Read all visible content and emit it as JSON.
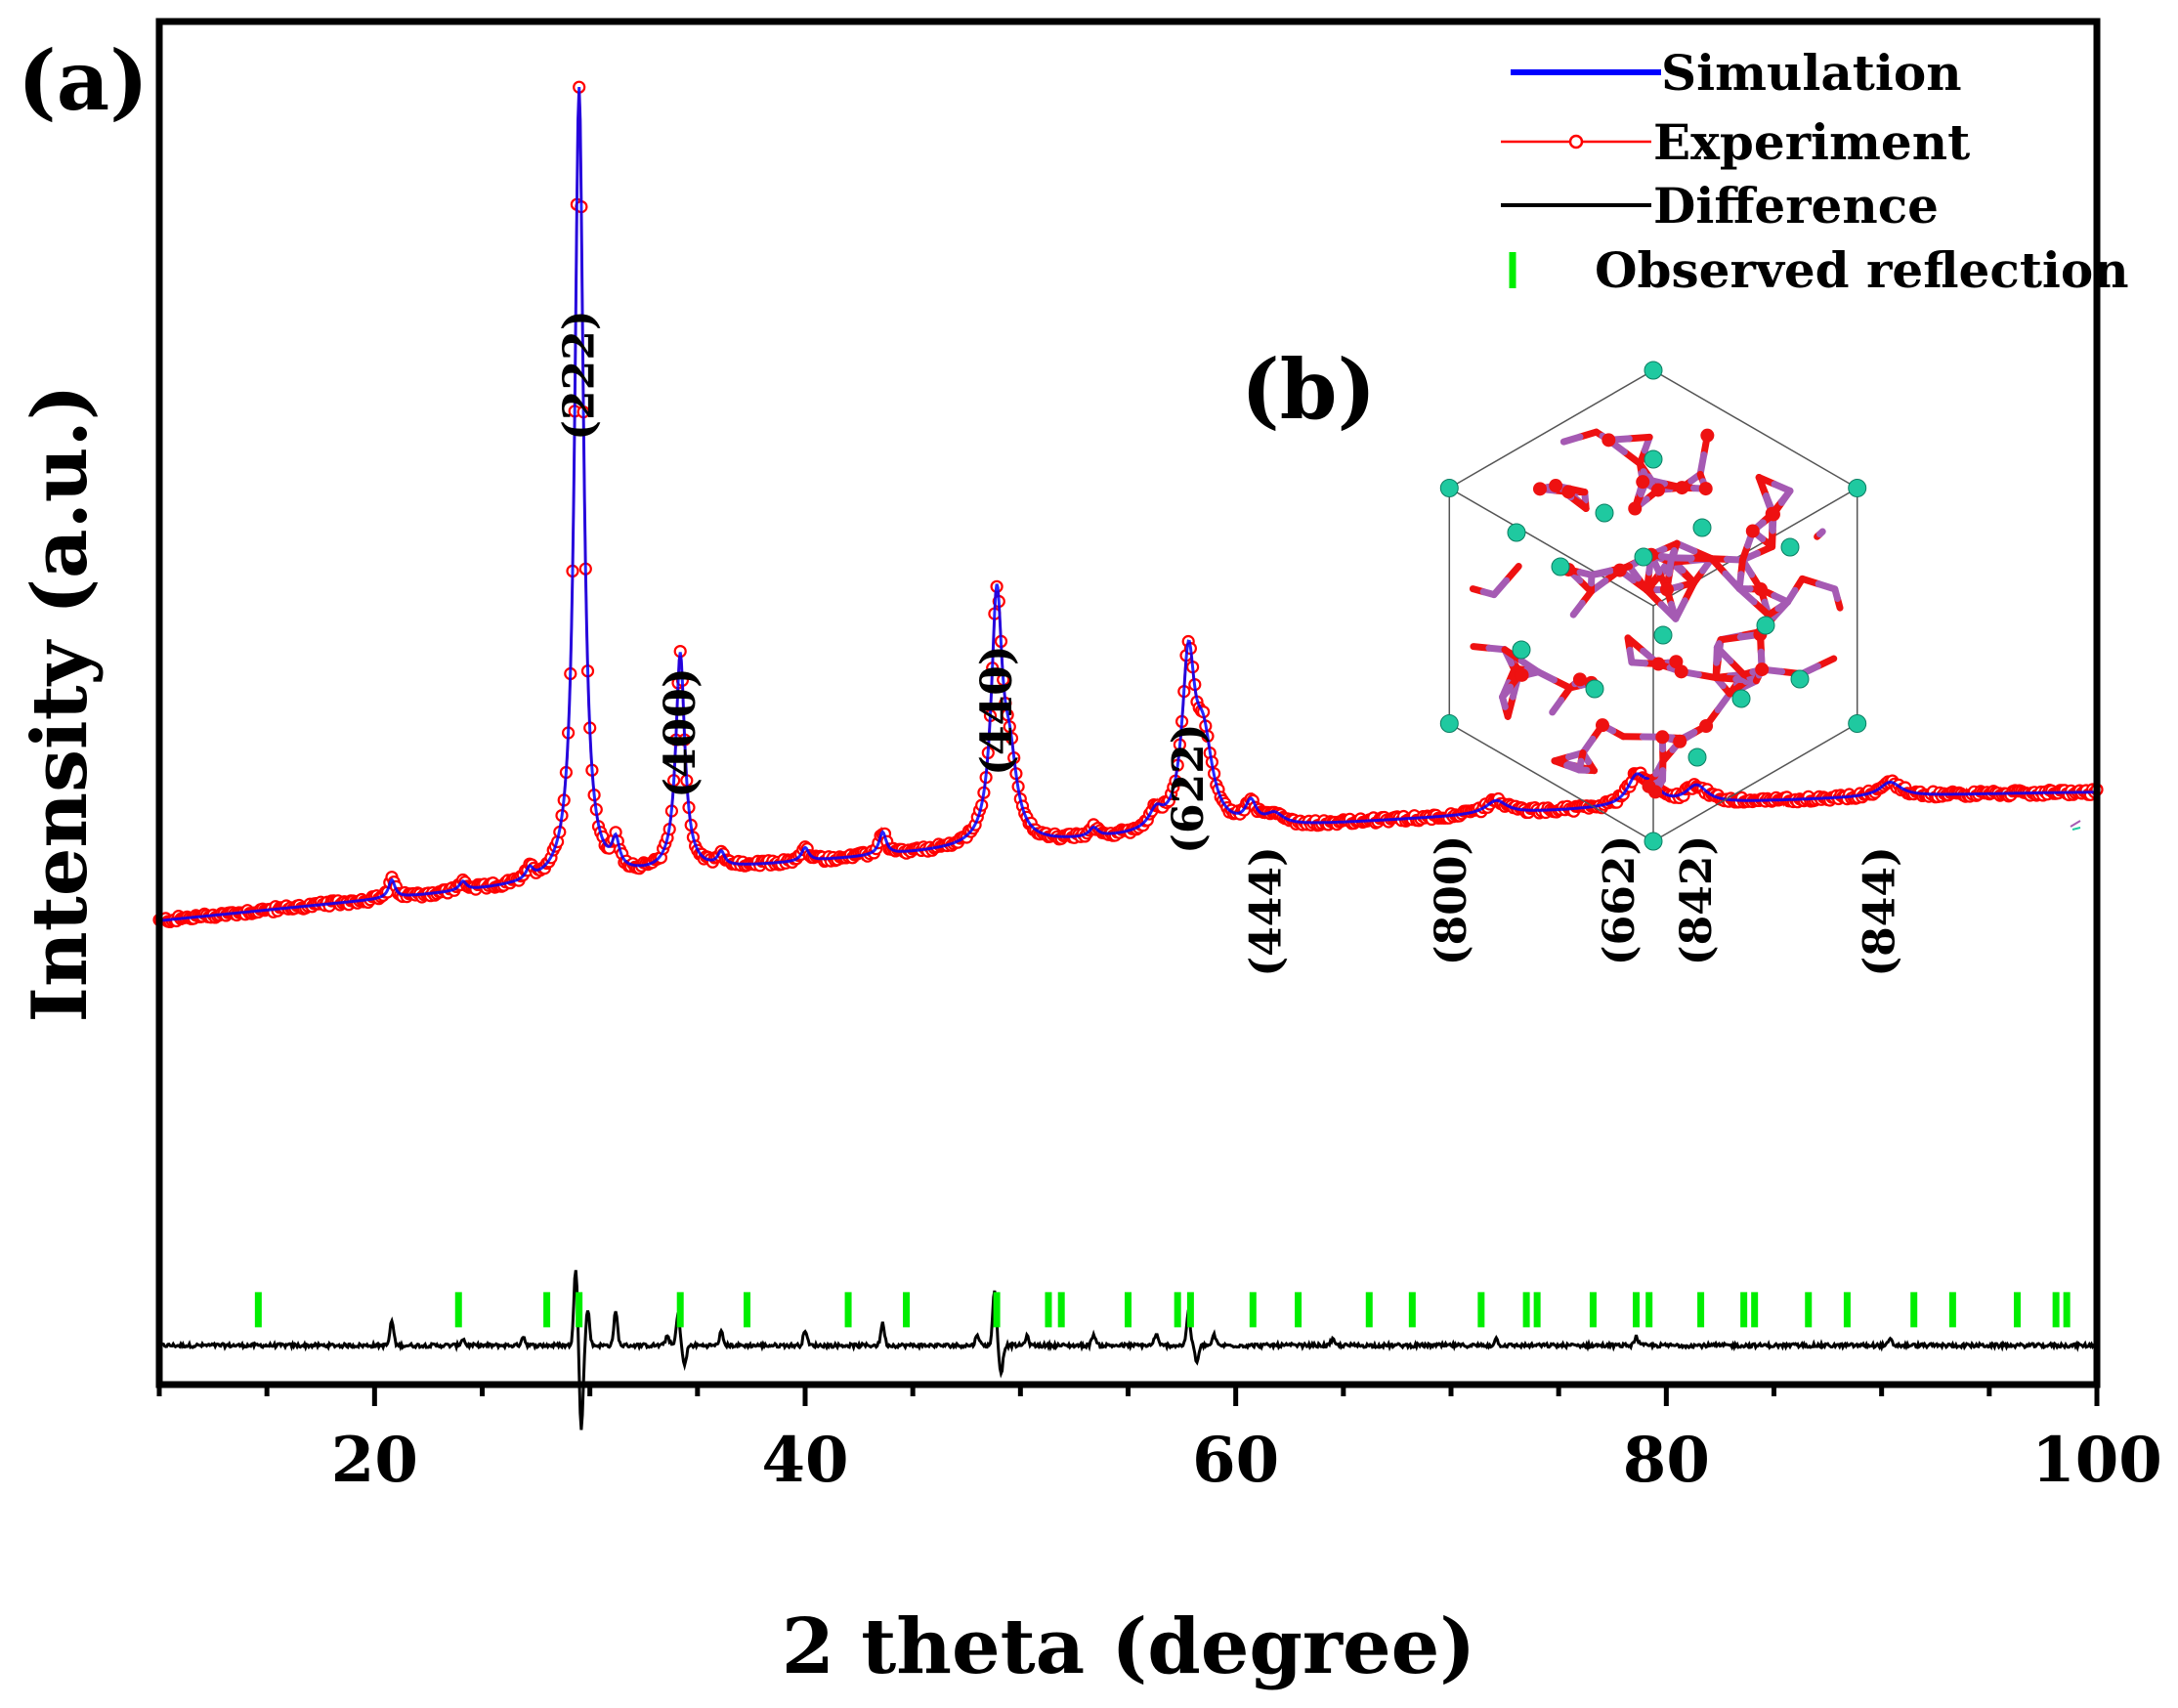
{
  "panel_labels": {
    "a": "(a)",
    "b": "(b)"
  },
  "colors": {
    "simulation": "#0000ff",
    "experiment": "#ff0000",
    "difference": "#000000",
    "reflection": "#00ee00",
    "atom_red": "#ee1111",
    "atom_teal": "#1fc9a0",
    "atom_purple": "#a55ab3"
  },
  "chart_data": {
    "type": "line",
    "xlabel": "2 theta (degree)",
    "ylabel": "Intensity (a.u.)",
    "xlim": [
      10,
      100
    ],
    "ylim": [
      -12,
      110
    ],
    "xticks": [
      20,
      40,
      60,
      80,
      100
    ],
    "grid": false,
    "legend": {
      "placement": "top-right",
      "entries": [
        {
          "key": "simulation",
          "label": "Simulation"
        },
        {
          "key": "experiment",
          "label": "Experiment"
        },
        {
          "key": "difference",
          "label": "Difference"
        },
        {
          "key": "reflection",
          "label": "Observed reflection"
        }
      ]
    },
    "background": {
      "start": 29.5,
      "end": 41,
      "curvature": 0.5
    },
    "peaks": [
      {
        "x": 20.8,
        "h": 1.6,
        "w": 0.18
      },
      {
        "x": 24.1,
        "h": 0.8,
        "w": 0.2
      },
      {
        "x": 27.2,
        "h": 1.0,
        "w": 0.2
      },
      {
        "x": 29.5,
        "h": 71,
        "w": 0.24
      },
      {
        "x": 31.2,
        "h": 2.4,
        "w": 0.2
      },
      {
        "x": 34.2,
        "h": 19.5,
        "w": 0.25
      },
      {
        "x": 36.1,
        "h": 1.2,
        "w": 0.2
      },
      {
        "x": 40.0,
        "h": 1.2,
        "w": 0.2
      },
      {
        "x": 43.6,
        "h": 2.0,
        "w": 0.2
      },
      {
        "x": 48.9,
        "h": 21.5,
        "w": 0.3
      },
      {
        "x": 49.5,
        "h": 6.5,
        "w": 0.4
      },
      {
        "x": 53.4,
        "h": 0.8,
        "w": 0.25
      },
      {
        "x": 56.3,
        "h": 1.6,
        "w": 0.4
      },
      {
        "x": 57.8,
        "h": 14.5,
        "w": 0.35
      },
      {
        "x": 58.5,
        "h": 7.5,
        "w": 0.5
      },
      {
        "x": 60.7,
        "h": 2.0,
        "w": 0.3
      },
      {
        "x": 61.8,
        "h": 1.0,
        "w": 0.5
      },
      {
        "x": 72.1,
        "h": 1.2,
        "w": 0.6
      },
      {
        "x": 78.6,
        "h": 2.4,
        "w": 0.5
      },
      {
        "x": 79.3,
        "h": 1.4,
        "w": 0.5
      },
      {
        "x": 81.4,
        "h": 1.6,
        "w": 0.6
      },
      {
        "x": 90.4,
        "h": 1.3,
        "w": 0.6
      }
    ],
    "difference": {
      "baseline": -8.5,
      "features": [
        {
          "x": 20.8,
          "a": 2.2
        },
        {
          "x": 24.1,
          "a": 0.6
        },
        {
          "x": 26.9,
          "a": 0.8
        },
        {
          "x": 29.35,
          "a": 7
        },
        {
          "x": 29.6,
          "a": -7.5
        },
        {
          "x": 29.9,
          "a": 3.2
        },
        {
          "x": 31.2,
          "a": 3.0
        },
        {
          "x": 33.6,
          "a": 0.9
        },
        {
          "x": 34.1,
          "a": 2.8
        },
        {
          "x": 34.4,
          "a": -1.8
        },
        {
          "x": 36.1,
          "a": 1.2
        },
        {
          "x": 40.0,
          "a": 1.4
        },
        {
          "x": 43.6,
          "a": 2.0
        },
        {
          "x": 48.0,
          "a": 1.0
        },
        {
          "x": 48.8,
          "a": 5.0
        },
        {
          "x": 49.1,
          "a": -2.5
        },
        {
          "x": 50.3,
          "a": 0.8
        },
        {
          "x": 53.4,
          "a": 1.0
        },
        {
          "x": 56.3,
          "a": 1.0
        },
        {
          "x": 57.8,
          "a": 3.0
        },
        {
          "x": 58.2,
          "a": -1.5
        },
        {
          "x": 59.0,
          "a": 0.9
        },
        {
          "x": 64.5,
          "a": 0.5
        },
        {
          "x": 72.1,
          "a": 0.6
        },
        {
          "x": 78.6,
          "a": 0.8
        },
        {
          "x": 90.4,
          "a": 0.5
        }
      ]
    },
    "reflections": {
      "y": -5.3,
      "positions": [
        14.6,
        23.9,
        28.0,
        29.5,
        34.2,
        37.3,
        42.0,
        44.7,
        48.9,
        51.3,
        51.9,
        55.0,
        57.3,
        57.9,
        60.8,
        62.9,
        66.2,
        68.2,
        71.4,
        73.5,
        74.0,
        76.6,
        78.6,
        79.2,
        81.6,
        83.6,
        84.1,
        86.6,
        88.4,
        91.5,
        93.3,
        96.3,
        98.1,
        98.6
      ]
    },
    "peak_labels": [
      {
        "text": "(222)",
        "x": 29.5,
        "y": 72.5
      },
      {
        "text": "(400)",
        "x": 34.2,
        "y": 40.5
      },
      {
        "text": "(440)",
        "x": 48.9,
        "y": 42.5
      },
      {
        "text": "(622)",
        "x": 57.8,
        "y": 35.5
      },
      {
        "text": "(444)",
        "x": 61.4,
        "y": 24.5
      },
      {
        "text": "(800)",
        "x": 70.0,
        "y": 25.5
      },
      {
        "text": "(662)",
        "x": 77.8,
        "y": 25.5
      },
      {
        "text": "(842)",
        "x": 81.4,
        "y": 25.5
      },
      {
        "text": "(844)",
        "x": 89.9,
        "y": 24.5
      }
    ]
  }
}
